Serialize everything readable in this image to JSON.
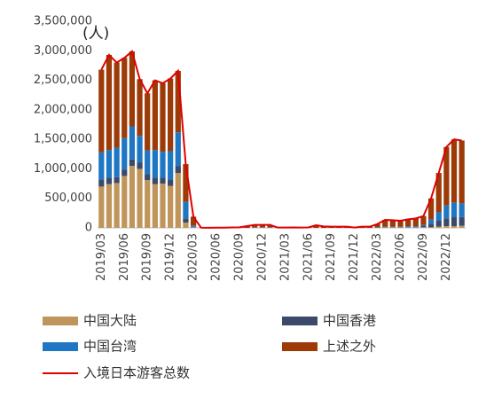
{
  "chart_data": {
    "type": "bar",
    "stacked": true,
    "ylabel": "(人)",
    "categories": [
      "2019/03",
      null,
      null,
      "2019/06",
      null,
      null,
      "2019/09",
      null,
      null,
      "2019/12",
      null,
      null,
      "2020/03",
      null,
      null,
      "2020/06",
      null,
      null,
      "2020/09",
      null,
      null,
      "2020/12",
      null,
      null,
      "2021/03",
      null,
      null,
      "2021/06",
      null,
      null,
      "2021/09",
      null,
      null,
      "2021/12",
      null,
      null,
      "2022/03",
      null,
      null,
      "2022/06",
      null,
      null,
      "2022/09",
      null,
      null,
      "2022/12",
      null,
      null
    ],
    "series": [
      {
        "name": "中国大陆",
        "color": "#c0955b",
        "values": [
          700000,
          740000,
          760000,
          880000,
          1050000,
          1000000,
          810000,
          740000,
          750000,
          710000,
          930000,
          90000,
          10000,
          0,
          0,
          0,
          0,
          0,
          0,
          0,
          0,
          0,
          0,
          0,
          0,
          0,
          0,
          0,
          0,
          0,
          0,
          0,
          0,
          0,
          0,
          0,
          0,
          10000,
          10000,
          10000,
          10000,
          10000,
          10000,
          10000,
          20000,
          30000,
          30000,
          35000
        ]
      },
      {
        "name": "中国香港",
        "color": "#3b4a6b",
        "values": [
          120000,
          110000,
          100000,
          110000,
          110000,
          110000,
          100000,
          110000,
          100000,
          110000,
          120000,
          70000,
          10000,
          0,
          0,
          0,
          0,
          0,
          0,
          0,
          5000,
          5000,
          5000,
          0,
          0,
          0,
          0,
          0,
          0,
          0,
          0,
          0,
          0,
          0,
          0,
          0,
          5000,
          5000,
          5000,
          5000,
          10000,
          10000,
          20000,
          60000,
          100000,
          130000,
          150000,
          150000
        ]
      },
      {
        "name": "中国台湾",
        "color": "#1f77c4",
        "values": [
          460000,
          470000,
          500000,
          530000,
          560000,
          450000,
          400000,
          470000,
          440000,
          480000,
          570000,
          280000,
          20000,
          0,
          0,
          0,
          0,
          0,
          0,
          0,
          5000,
          5000,
          5000,
          0,
          0,
          0,
          0,
          0,
          0,
          0,
          0,
          0,
          0,
          0,
          0,
          0,
          5000,
          5000,
          5000,
          5000,
          10000,
          10000,
          20000,
          70000,
          150000,
          220000,
          250000,
          230000
        ]
      },
      {
        "name": "上述之外",
        "color": "#9c3a08",
        "values": [
          1400000,
          1610000,
          1440000,
          1360000,
          1270000,
          960000,
          970000,
          1180000,
          1160000,
          1230000,
          1040000,
          640000,
          150000,
          3000,
          2000,
          3000,
          4000,
          8000,
          10000,
          30000,
          40000,
          40000,
          40000,
          5000,
          5000,
          8000,
          5000,
          8000,
          45000,
          25000,
          20000,
          20000,
          20000,
          5000,
          20000,
          20000,
          55000,
          115000,
          110000,
          100000,
          115000,
          130000,
          150000,
          360000,
          660000,
          990000,
          1070000,
          1065000
        ]
      },
      {
        "name": "入境日本游客总数",
        "type": "line",
        "color": "#e00000",
        "values": [
          2680000,
          2930000,
          2800000,
          2880000,
          2990000,
          2520000,
          2280000,
          2500000,
          2450000,
          2530000,
          2660000,
          1080000,
          190000,
          3000,
          2000,
          3000,
          4000,
          8000,
          10000,
          30000,
          50000,
          50000,
          50000,
          5000,
          5000,
          8000,
          5000,
          8000,
          45000,
          25000,
          20000,
          20000,
          20000,
          5000,
          20000,
          20000,
          65000,
          135000,
          130000,
          120000,
          145000,
          160000,
          200000,
          500000,
          930000,
          1370000,
          1500000,
          1480000
        ]
      }
    ],
    "ylim": [
      0,
      3500000
    ],
    "yticks": [
      {
        "value": 0,
        "label": "0"
      },
      {
        "value": 500000,
        "label": "500,000"
      },
      {
        "value": 1000000,
        "label": "1,000,000"
      },
      {
        "value": 1500000,
        "label": "1,500,000"
      },
      {
        "value": 2000000,
        "label": "2,000,000"
      },
      {
        "value": 2500000,
        "label": "2,500,000"
      },
      {
        "value": 3000000,
        "label": "3,000,000"
      },
      {
        "value": 3500000,
        "label": "3,500,000"
      }
    ],
    "grid": false,
    "legend": "bottom"
  }
}
